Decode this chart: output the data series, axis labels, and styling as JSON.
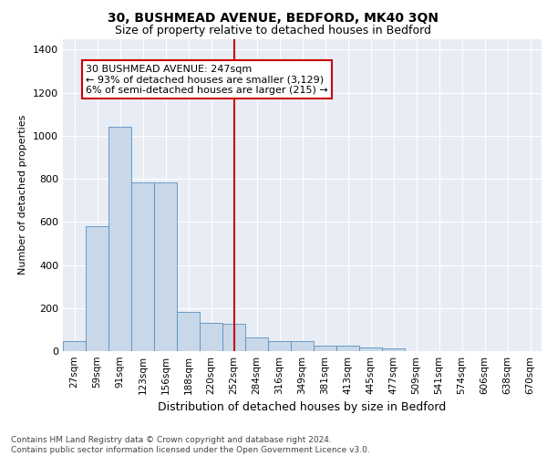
{
  "title1": "30, BUSHMEAD AVENUE, BEDFORD, MK40 3QN",
  "title2": "Size of property relative to detached houses in Bedford",
  "xlabel": "Distribution of detached houses by size in Bedford",
  "ylabel": "Number of detached properties",
  "categories": [
    "27sqm",
    "59sqm",
    "91sqm",
    "123sqm",
    "156sqm",
    "188sqm",
    "220sqm",
    "252sqm",
    "284sqm",
    "316sqm",
    "349sqm",
    "381sqm",
    "413sqm",
    "445sqm",
    "477sqm",
    "509sqm",
    "541sqm",
    "574sqm",
    "606sqm",
    "638sqm",
    "670sqm"
  ],
  "values": [
    47,
    578,
    1040,
    785,
    785,
    182,
    130,
    128,
    65,
    47,
    47,
    25,
    25,
    18,
    12,
    0,
    0,
    0,
    0,
    0,
    0
  ],
  "bar_color": "#c8d8e8",
  "bar_edge_color": "#5a8fc0",
  "vline_x_idx": 7,
  "vline_color": "#cc0000",
  "annotation_text": "30 BUSHMEAD AVENUE: 247sqm\n← 93% of detached houses are smaller (3,129)\n6% of semi-detached houses are larger (215) →",
  "annotation_box_color": "#ffffff",
  "annotation_box_edge": "#cc0000",
  "footnote": "Contains HM Land Registry data © Crown copyright and database right 2024.\nContains public sector information licensed under the Open Government Licence v3.0.",
  "plot_bg_color": "#e8edf5",
  "fig_bg_color": "#ffffff",
  "ylim": [
    0,
    1450
  ],
  "yticks": [
    0,
    200,
    400,
    600,
    800,
    1000,
    1200,
    1400
  ],
  "grid_color": "#ffffff",
  "title1_fontsize": 10,
  "title2_fontsize": 9,
  "xlabel_fontsize": 9,
  "ylabel_fontsize": 8,
  "tick_fontsize": 7.5,
  "footnote_fontsize": 6.5,
  "annotation_fontsize": 8
}
